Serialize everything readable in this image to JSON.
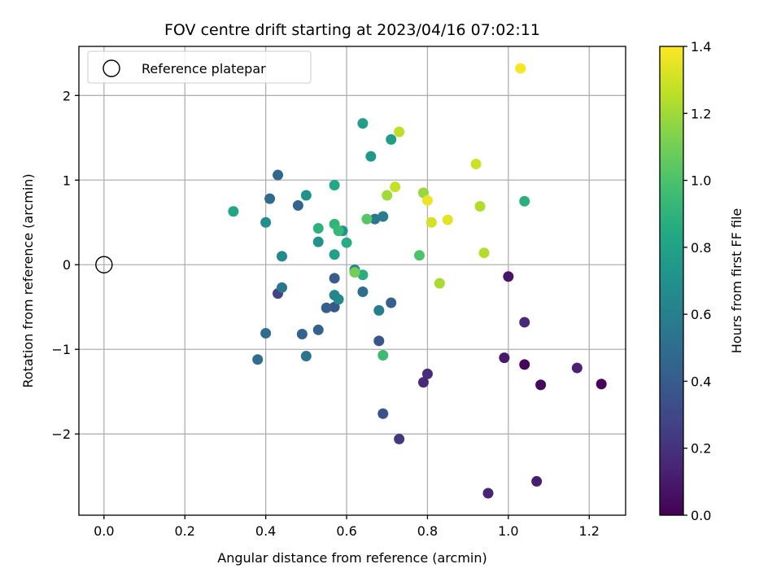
{
  "chart_data": {
    "type": "scatter",
    "title": "FOV centre drift starting at 2023/04/16 07:02:11",
    "xlabel": "Angular distance from reference (arcmin)",
    "ylabel": "Rotation from reference (arcmin)",
    "xlim": [
      -0.062,
      1.29
    ],
    "ylim": [
      -2.96,
      2.58
    ],
    "x_ticks": [
      0.0,
      0.2,
      0.4,
      0.6,
      0.8,
      1.0,
      1.2
    ],
    "x_tick_labels": [
      "0.0",
      "0.2",
      "0.4",
      "0.6",
      "0.8",
      "1.0",
      "1.2"
    ],
    "y_ticks": [
      -2,
      -1,
      0,
      1,
      2
    ],
    "y_tick_labels": [
      "−2",
      "−1",
      "0",
      "1",
      "2"
    ],
    "grid": true,
    "legend": {
      "position": "top-left",
      "entries": [
        "Reference platepar"
      ]
    },
    "reference_point": {
      "x": 0.0,
      "y": 0.0
    },
    "colorbar": {
      "label": "Hours from first FF file",
      "colormap": "viridis",
      "range": [
        0.0,
        1.4
      ],
      "ticks": [
        0.0,
        0.2,
        0.4,
        0.6,
        0.8,
        1.0,
        1.2,
        1.4
      ],
      "tick_labels": [
        "0.0",
        "0.2",
        "0.4",
        "0.6",
        "0.8",
        "1.0",
        "1.2",
        "1.4"
      ]
    },
    "points": [
      {
        "x": 1.23,
        "y": -1.41,
        "c": 0.02
      },
      {
        "x": 1.04,
        "y": -1.18,
        "c": 0.02
      },
      {
        "x": 1.08,
        "y": -1.42,
        "c": 0.03
      },
      {
        "x": 1.0,
        "y": -0.14,
        "c": 0.08
      },
      {
        "x": 0.99,
        "y": -1.1,
        "c": 0.1
      },
      {
        "x": 1.07,
        "y": -2.56,
        "c": 0.12
      },
      {
        "x": 1.17,
        "y": -1.22,
        "c": 0.13
      },
      {
        "x": 0.95,
        "y": -2.7,
        "c": 0.14
      },
      {
        "x": 1.04,
        "y": -0.68,
        "c": 0.16
      },
      {
        "x": 0.79,
        "y": -1.39,
        "c": 0.17
      },
      {
        "x": 0.8,
        "y": -1.29,
        "c": 0.18
      },
      {
        "x": 0.73,
        "y": -2.06,
        "c": 0.22
      },
      {
        "x": 0.43,
        "y": -0.34,
        "c": 0.27
      },
      {
        "x": 0.69,
        "y": -1.76,
        "c": 0.35
      },
      {
        "x": 0.68,
        "y": -0.9,
        "c": 0.37
      },
      {
        "x": 0.57,
        "y": -0.5,
        "c": 0.38
      },
      {
        "x": 0.57,
        "y": -0.16,
        "c": 0.4
      },
      {
        "x": 0.55,
        "y": -0.51,
        "c": 0.42
      },
      {
        "x": 0.71,
        "y": -0.45,
        "c": 0.43
      },
      {
        "x": 0.53,
        "y": -0.77,
        "c": 0.44
      },
      {
        "x": 0.49,
        "y": -0.82,
        "c": 0.45
      },
      {
        "x": 0.48,
        "y": 0.7,
        "c": 0.45
      },
      {
        "x": 0.43,
        "y": 1.06,
        "c": 0.46
      },
      {
        "x": 0.41,
        "y": 0.78,
        "c": 0.48
      },
      {
        "x": 0.4,
        "y": -0.81,
        "c": 0.49
      },
      {
        "x": 0.38,
        "y": -1.12,
        "c": 0.5
      },
      {
        "x": 0.64,
        "y": -0.32,
        "c": 0.51
      },
      {
        "x": 0.5,
        "y": -1.08,
        "c": 0.53
      },
      {
        "x": 0.44,
        "y": -0.27,
        "c": 0.55
      },
      {
        "x": 0.67,
        "y": 0.54,
        "c": 0.56
      },
      {
        "x": 0.69,
        "y": 0.57,
        "c": 0.58
      },
      {
        "x": 0.68,
        "y": -0.54,
        "c": 0.6
      },
      {
        "x": 0.62,
        "y": -0.06,
        "c": 0.62
      },
      {
        "x": 0.57,
        "y": -0.36,
        "c": 0.64
      },
      {
        "x": 0.58,
        "y": -0.41,
        "c": 0.65
      },
      {
        "x": 0.44,
        "y": 0.1,
        "c": 0.66
      },
      {
        "x": 0.4,
        "y": 0.5,
        "c": 0.68
      },
      {
        "x": 0.5,
        "y": 0.82,
        "c": 0.7
      },
      {
        "x": 0.53,
        "y": 0.27,
        "c": 0.71
      },
      {
        "x": 0.59,
        "y": 0.4,
        "c": 0.72
      },
      {
        "x": 0.66,
        "y": 1.28,
        "c": 0.74
      },
      {
        "x": 0.64,
        "y": 1.67,
        "c": 0.77
      },
      {
        "x": 0.71,
        "y": 1.48,
        "c": 0.78
      },
      {
        "x": 0.57,
        "y": 0.12,
        "c": 0.8
      },
      {
        "x": 0.32,
        "y": 0.63,
        "c": 0.82
      },
      {
        "x": 0.57,
        "y": 0.94,
        "c": 0.84
      },
      {
        "x": 0.6,
        "y": 0.26,
        "c": 0.86
      },
      {
        "x": 0.64,
        "y": -0.12,
        "c": 0.87
      },
      {
        "x": 1.04,
        "y": 0.75,
        "c": 0.88
      },
      {
        "x": 0.53,
        "y": 0.43,
        "c": 0.89
      },
      {
        "x": 0.57,
        "y": 0.48,
        "c": 0.91
      },
      {
        "x": 0.58,
        "y": 0.4,
        "c": 0.93
      },
      {
        "x": 0.69,
        "y": -1.07,
        "c": 0.95
      },
      {
        "x": 0.78,
        "y": 0.11,
        "c": 1.0
      },
      {
        "x": 0.65,
        "y": 0.54,
        "c": 1.03
      },
      {
        "x": 0.62,
        "y": -0.09,
        "c": 1.1
      },
      {
        "x": 0.79,
        "y": 0.85,
        "c": 1.18
      },
      {
        "x": 0.7,
        "y": 0.82,
        "c": 1.2
      },
      {
        "x": 0.83,
        "y": -0.22,
        "c": 1.22
      },
      {
        "x": 0.94,
        "y": 0.14,
        "c": 1.24
      },
      {
        "x": 0.93,
        "y": 0.69,
        "c": 1.24
      },
      {
        "x": 0.73,
        "y": 1.57,
        "c": 1.26
      },
      {
        "x": 0.72,
        "y": 0.92,
        "c": 1.28
      },
      {
        "x": 0.92,
        "y": 1.19,
        "c": 1.3
      },
      {
        "x": 0.81,
        "y": 0.5,
        "c": 1.31
      },
      {
        "x": 0.85,
        "y": 0.53,
        "c": 1.34
      },
      {
        "x": 0.8,
        "y": 0.76,
        "c": 1.36
      },
      {
        "x": 1.03,
        "y": 2.32,
        "c": 1.39
      }
    ]
  }
}
